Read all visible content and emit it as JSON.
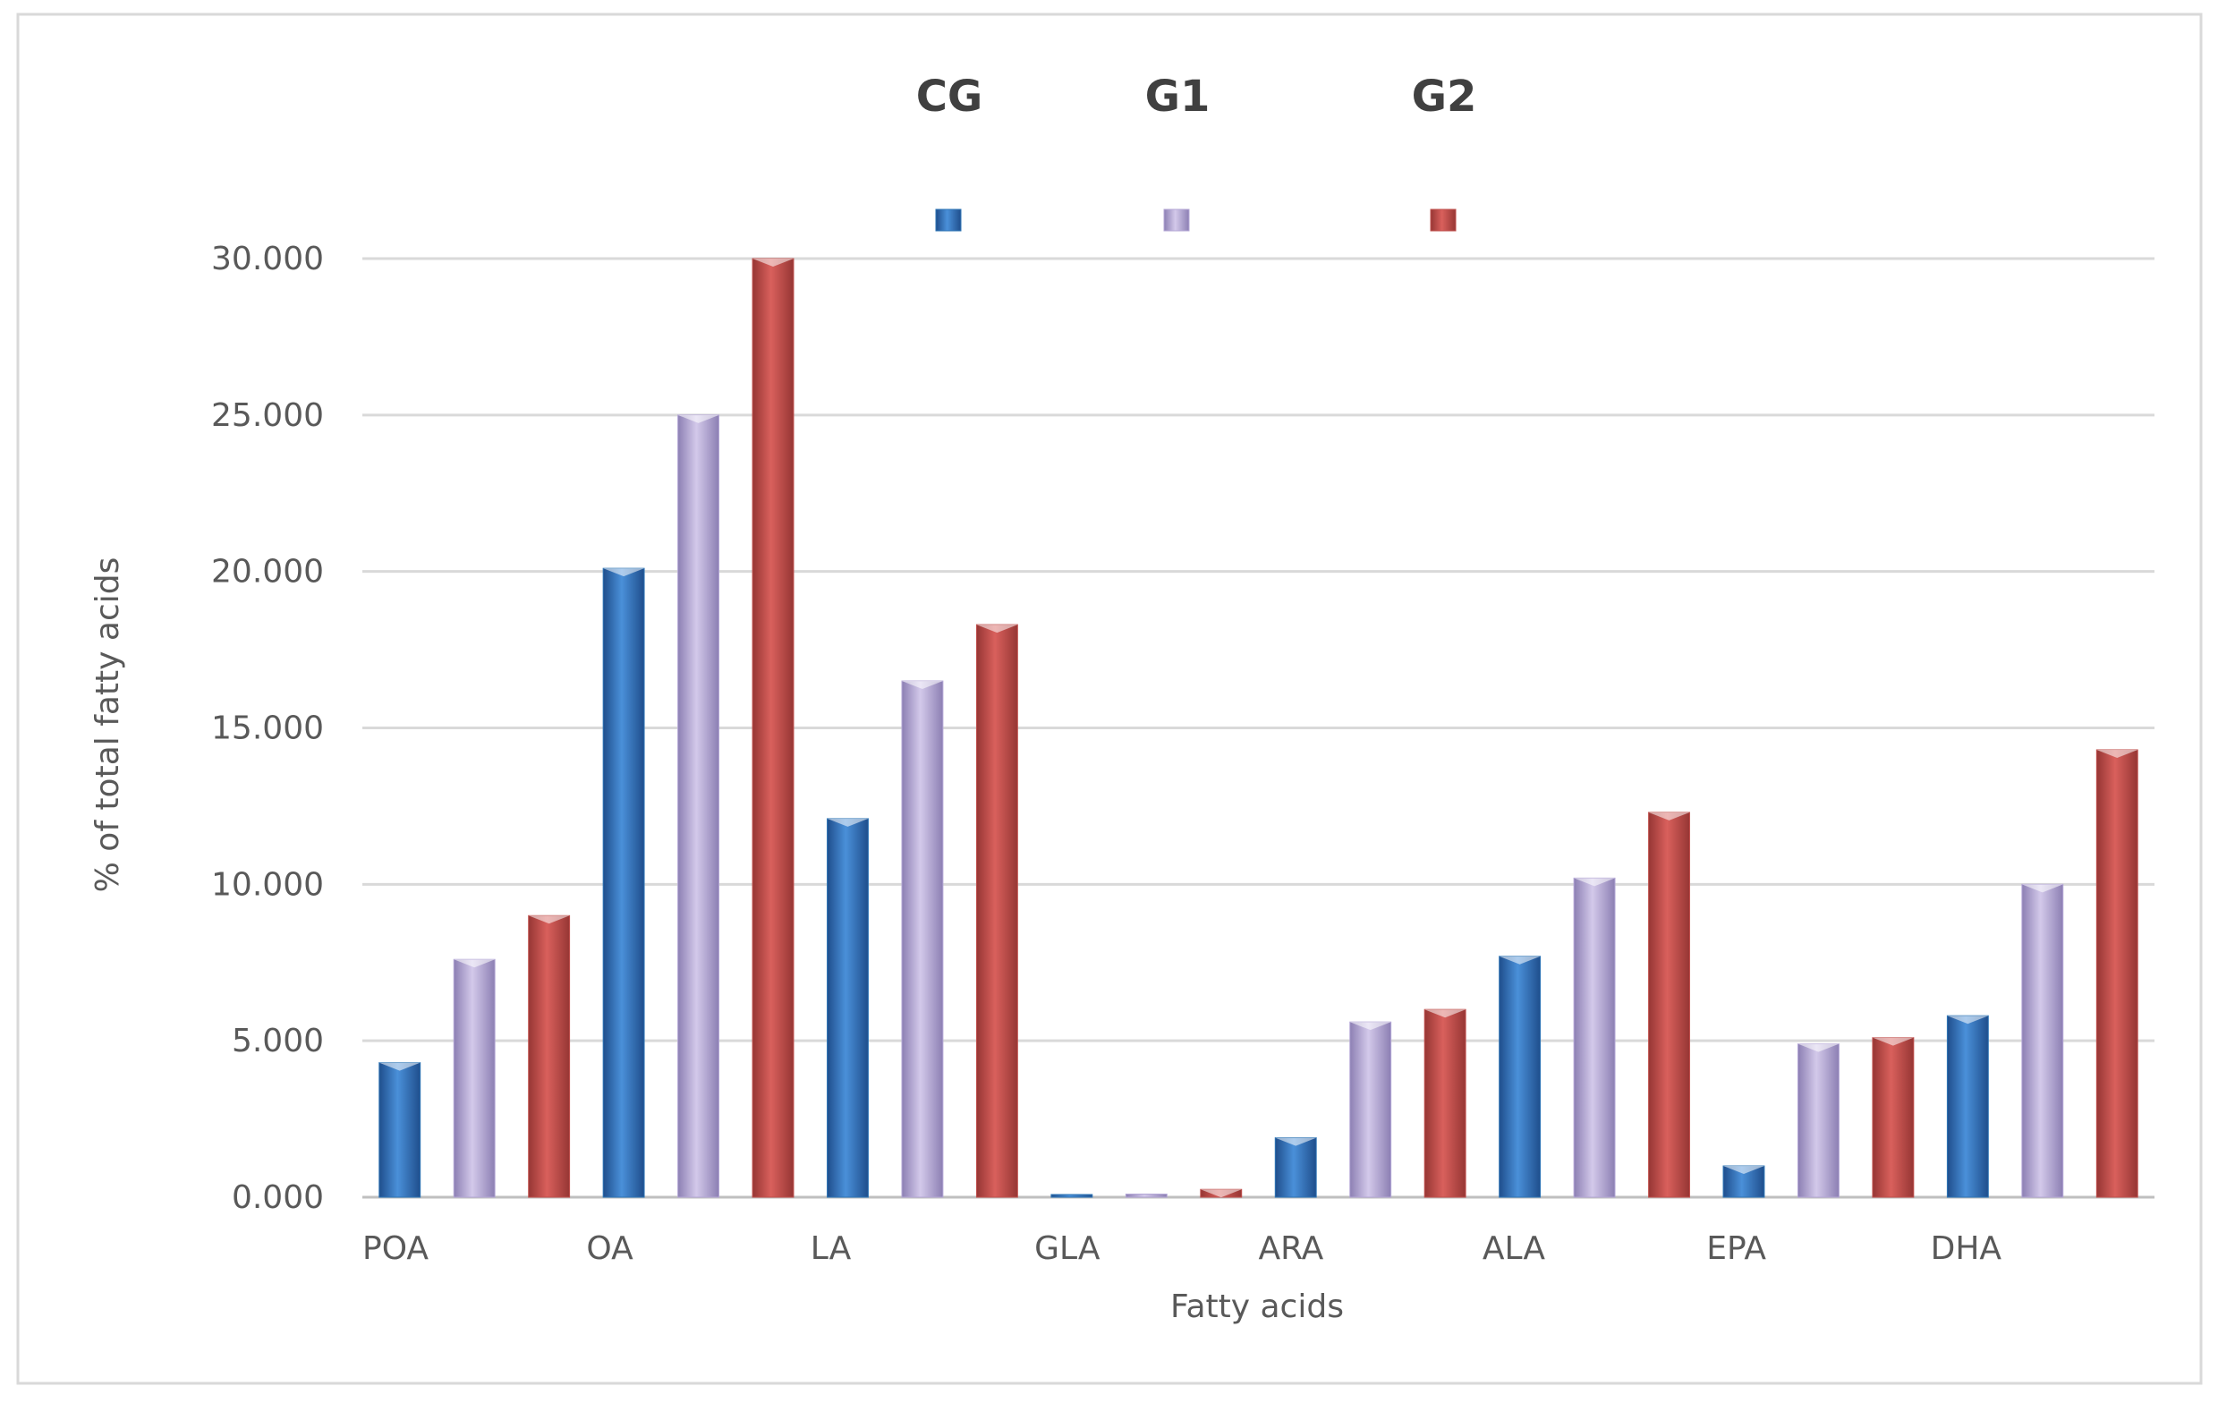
{
  "chart_data": {
    "type": "bar",
    "title": "",
    "xlabel": "Fatty acids",
    "ylabel": "% of total fatty acids",
    "ylim": [
      0,
      30
    ],
    "yticks": [
      "0.000",
      "5.000",
      "10.000",
      "15.000",
      "20.000",
      "25.000",
      "30.000"
    ],
    "grid": true,
    "legend_position": "top-center",
    "x_tick_labels": [
      "POA",
      "OA",
      "LA",
      "GLA",
      "ARA",
      "ALA",
      "EPA",
      "DHA"
    ],
    "categories": [
      "POA",
      "OA",
      "LA",
      "GLA",
      "ARA",
      "ALA",
      "EPA",
      "DHA"
    ],
    "series": [
      {
        "name": "CG",
        "color": "#2e75b6",
        "values": [
          4.3,
          20.1,
          12.1,
          0.05,
          1.9,
          7.7,
          1.0,
          5.8
        ]
      },
      {
        "name": "G1",
        "color": "#b4a7d6",
        "values": [
          7.6,
          25.0,
          16.5,
          0.1,
          5.6,
          10.2,
          4.9,
          10.0
        ]
      },
      {
        "name": "G2",
        "color": "#c0504d",
        "values": [
          9.0,
          30.0,
          18.3,
          0.25,
          6.0,
          12.3,
          5.1,
          14.3
        ]
      }
    ]
  }
}
